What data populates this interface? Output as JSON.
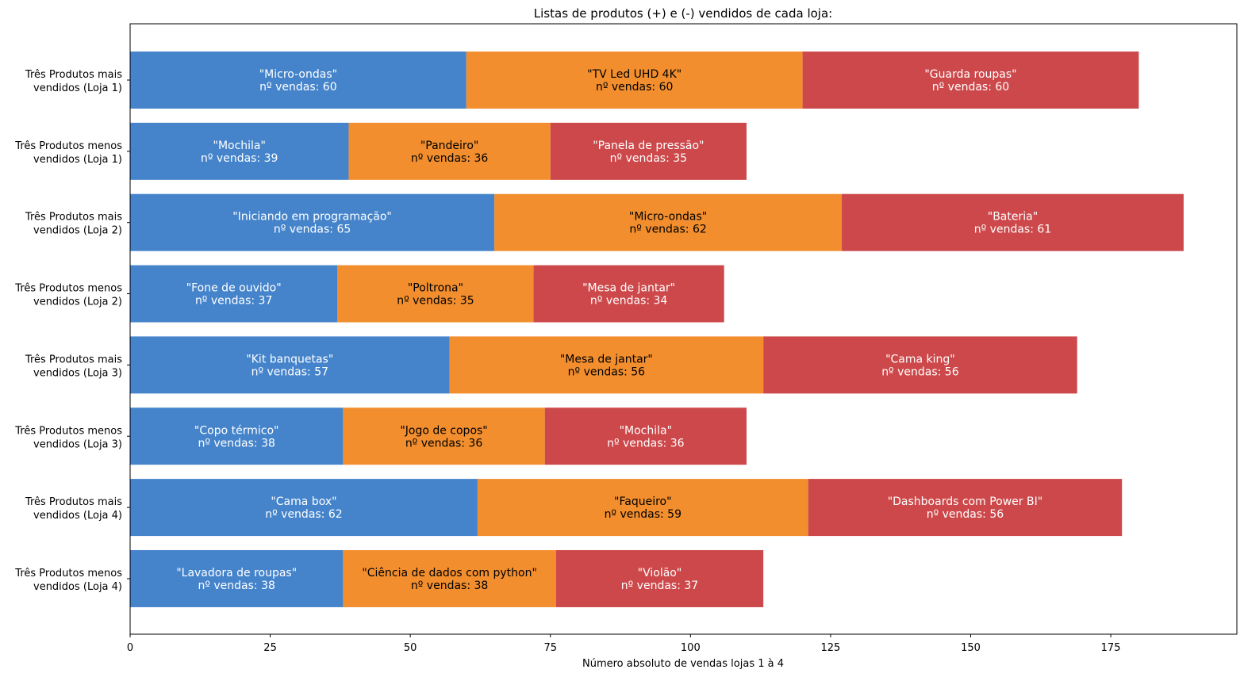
{
  "chart_data": {
    "type": "bar",
    "orientation": "horizontal",
    "stacked": true,
    "title": "Listas de produtos (+) e (-) vendidos de cada loja:",
    "xlabel": "Número absoluto de vendas lojas 1 à 4",
    "ylabel": "",
    "xlim": [
      0,
      197.5
    ],
    "xticks": [
      "0",
      "25",
      "50",
      "75",
      "100",
      "125",
      "150",
      "175"
    ],
    "grid": false,
    "legend": "none",
    "colors": [
      "#4584cb",
      "#f28e2e",
      "#cd484a"
    ],
    "value_label_prefix": "nº vendas: ",
    "categories": [
      {
        "label_line1": "Três Produtos mais",
        "label_line2": "vendidos (Loja 1)"
      },
      {
        "label_line1": "Três Produtos menos",
        "label_line2": "vendidos (Loja 1)"
      },
      {
        "label_line1": "Três Produtos mais",
        "label_line2": "vendidos (Loja 2)"
      },
      {
        "label_line1": "Três Produtos menos",
        "label_line2": "vendidos (Loja 2)"
      },
      {
        "label_line1": "Três Produtos mais",
        "label_line2": "vendidos (Loja 3)"
      },
      {
        "label_line1": "Três Produtos menos",
        "label_line2": "vendidos (Loja 3)"
      },
      {
        "label_line1": "Três Produtos mais",
        "label_line2": "vendidos (Loja 4)"
      },
      {
        "label_line1": "Três Produtos menos",
        "label_line2": "vendidos (Loja 4)"
      }
    ],
    "segments": [
      [
        {
          "product": "Micro-ondas",
          "value": 60
        },
        {
          "product": "TV Led UHD 4K",
          "value": 60
        },
        {
          "product": "Guarda roupas",
          "value": 60
        }
      ],
      [
        {
          "product": "Mochila",
          "value": 39
        },
        {
          "product": "Pandeiro",
          "value": 36
        },
        {
          "product": "Panela de pressão",
          "value": 35
        }
      ],
      [
        {
          "product": "Iniciando em programação",
          "value": 65
        },
        {
          "product": "Micro-ondas",
          "value": 62
        },
        {
          "product": "Bateria",
          "value": 61
        }
      ],
      [
        {
          "product": "Fone de ouvido",
          "value": 37
        },
        {
          "product": "Poltrona",
          "value": 35
        },
        {
          "product": "Mesa de jantar",
          "value": 34
        }
      ],
      [
        {
          "product": "Kit banquetas",
          "value": 57
        },
        {
          "product": "Mesa de jantar",
          "value": 56
        },
        {
          "product": "Cama king",
          "value": 56
        }
      ],
      [
        {
          "product": "Copo térmico",
          "value": 38
        },
        {
          "product": "Jogo de copos",
          "value": 36
        },
        {
          "product": "Mochila",
          "value": 36
        }
      ],
      [
        {
          "product": "Cama box",
          "value": 62
        },
        {
          "product": "Faqueiro",
          "value": 59
        },
        {
          "product": "Dashboards com Power BI",
          "value": 56
        }
      ],
      [
        {
          "product": "Lavadora de roupas",
          "value": 38
        },
        {
          "product": "Ciência de dados com python",
          "value": 38
        },
        {
          "product": "Violão",
          "value": 37
        }
      ]
    ]
  }
}
